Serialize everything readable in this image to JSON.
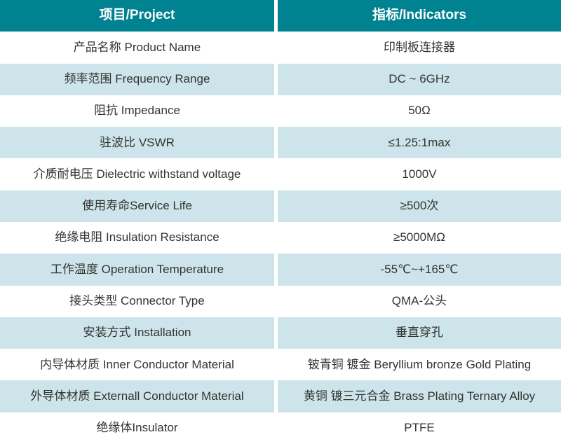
{
  "colors": {
    "header_bg": "#008291",
    "alt_row_bg": "#cde5ea",
    "plain_row_bg": "#ffffff",
    "header_text": "#ffffff",
    "body_text": "#333333",
    "divider": "#ffffff"
  },
  "table": {
    "header": {
      "project": "项目/Project",
      "indicators": "指标/Indicators"
    },
    "rows": [
      {
        "project": "产品名称 Product Name",
        "indicator": "印制板连接器"
      },
      {
        "project": "频率范围 Frequency Range",
        "indicator": "DC ~ 6GHz"
      },
      {
        "project": "阻抗 Impedance",
        "indicator": "50Ω"
      },
      {
        "project": "驻波比 VSWR",
        "indicator": "≤1.25:1max"
      },
      {
        "project": "介质耐电压 Dielectric withstand voltage",
        "indicator": "1000V"
      },
      {
        "project": "使用寿命Service Life",
        "indicator": "≥500次"
      },
      {
        "project": "绝缘电阻 Insulation Resistance",
        "indicator": "≥5000MΩ"
      },
      {
        "project": "工作温度 Operation Temperature",
        "indicator": "-55℃~+165℃"
      },
      {
        "project": "接头类型 Connector Type",
        "indicator": "QMA-公头"
      },
      {
        "project": "安装方式 Installation",
        "indicator": "垂直穿孔"
      },
      {
        "project": "内导体材质 Inner Conductor Material",
        "indicator": "铍青铜 镀金 Beryllium bronze Gold Plating"
      },
      {
        "project": "外导体材质 Externall Conductor Material",
        "indicator": "黄铜 镀三元合金 Brass Plating Ternary Alloy"
      },
      {
        "project": "绝缘体Insulator",
        "indicator": "PTFE"
      }
    ]
  }
}
